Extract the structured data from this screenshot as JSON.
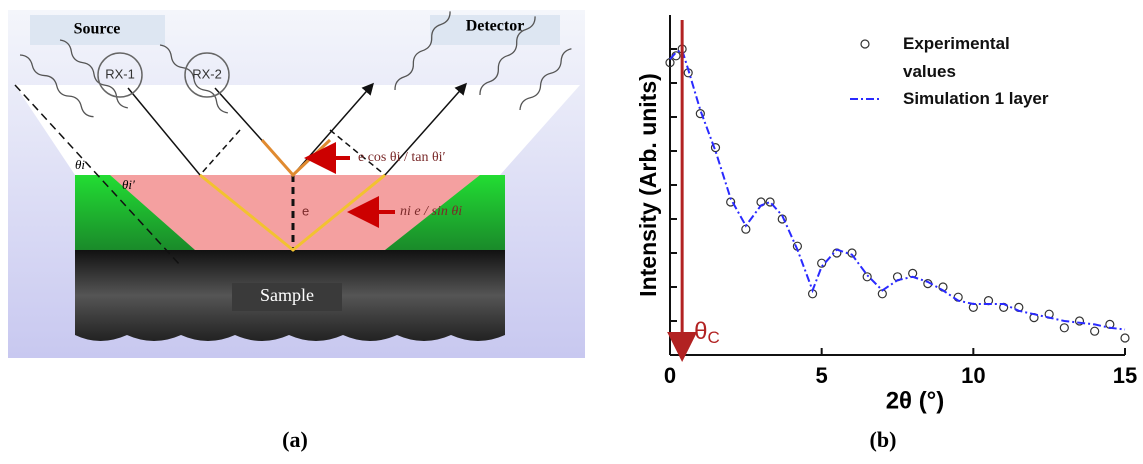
{
  "figure_a": {
    "source": "Source",
    "detector": "Detector",
    "rx1": "RX-1",
    "rx2": "RX-2",
    "upper_label": "e cos θi / tan θi′",
    "lower_label": "ni e / sin θi",
    "thickness": "e",
    "angle_out": "θi",
    "angle_in": "θi′",
    "sample": "Sample"
  },
  "captions": [
    "(a)",
    "(b)"
  ],
  "chart_data": {
    "type": "scatter",
    "x_label": "2θ (°)",
    "y_label": "Intensity (Arb. units)",
    "annotation": {
      "text": "θ",
      "subscript": "C",
      "x": 0.4,
      "color": "#b22222"
    },
    "x": [
      0,
      0.2,
      0.4,
      0.6,
      1,
      1.5,
      2,
      2.5,
      3,
      3.3,
      3.7,
      4.2,
      4.7,
      5,
      5.5,
      6,
      6.5,
      7,
      7.5,
      8,
      8.5,
      9,
      9.5,
      10,
      10.5,
      11,
      11.5,
      12,
      12.5,
      13,
      13.5,
      14,
      14.5,
      15
    ],
    "series": [
      {
        "name": "Experimental values",
        "color": "#333333",
        "marker": "open-circle",
        "values": [
          8.6,
          8.8,
          9.0,
          8.3,
          7.1,
          6.1,
          4.5,
          3.7,
          4.5,
          4.5,
          4.0,
          3.2,
          1.8,
          2.7,
          3.0,
          3.0,
          2.3,
          1.8,
          2.3,
          2.4,
          2.1,
          2.0,
          1.7,
          1.4,
          1.6,
          1.4,
          1.4,
          1.1,
          1.2,
          0.8,
          1.0,
          0.7,
          0.9,
          0.5
        ]
      },
      {
        "name": "Simulation 1 layer",
        "color": "#2a2aff",
        "marker": "dash-dot-line",
        "values": [
          8.7,
          8.9,
          8.97,
          8.4,
          7.2,
          6.0,
          4.6,
          3.8,
          4.4,
          4.5,
          4.1,
          3.1,
          1.9,
          2.6,
          3.1,
          2.95,
          2.35,
          1.9,
          2.2,
          2.3,
          2.15,
          1.9,
          1.6,
          1.5,
          1.5,
          1.5,
          1.3,
          1.2,
          1.1,
          1.0,
          0.95,
          0.9,
          0.8,
          0.75
        ]
      }
    ],
    "xlim": [
      0,
      15
    ],
    "xticks": [
      0,
      5,
      10,
      15
    ],
    "ylim": [
      0,
      10
    ],
    "yticks": [
      1,
      2,
      3,
      4,
      5,
      6,
      7,
      8,
      9
    ],
    "legend": "upper-right"
  }
}
